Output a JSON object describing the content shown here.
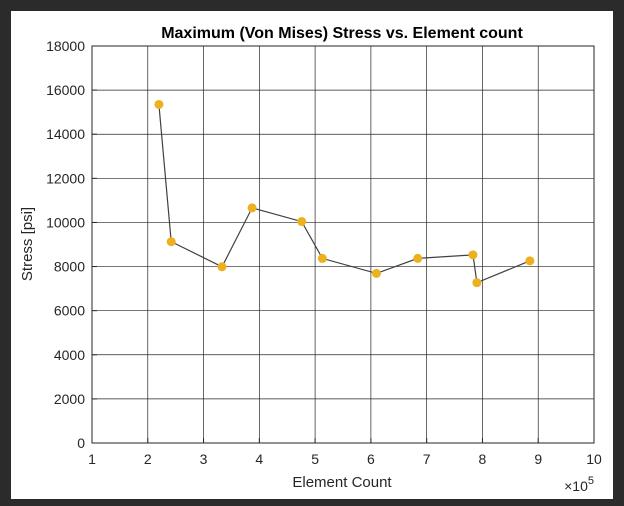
{
  "chart_data": {
    "type": "line",
    "title": "Maximum (Von Mises) Stress vs. Element count",
    "xlabel": "Element Count",
    "ylabel": "Stress [psi]",
    "x_exponent_label": "×10",
    "x_exponent_power": "5",
    "xlim": [
      1,
      10
    ],
    "ylim": [
      0,
      18000
    ],
    "x_ticks": [
      1,
      2,
      3,
      4,
      5,
      6,
      7,
      8,
      9,
      10
    ],
    "x_tick_labels": [
      "1",
      "2",
      "3",
      "4",
      "5",
      "6",
      "7",
      "8",
      "9",
      "10"
    ],
    "y_ticks": [
      0,
      2000,
      4000,
      6000,
      8000,
      10000,
      12000,
      14000,
      16000,
      18000
    ],
    "y_tick_labels": [
      "0",
      "2000",
      "4000",
      "6000",
      "8000",
      "10000",
      "12000",
      "14000",
      "16000",
      "18000"
    ],
    "grid": true,
    "line_color": "#404040",
    "marker_color": "#edb120",
    "series": [
      {
        "x": [
          2.2,
          2.42,
          3.33,
          3.87,
          4.76,
          5.13,
          6.1,
          6.84,
          7.83,
          7.9,
          8.85
        ],
        "values": [
          15350,
          9130,
          7990,
          10660,
          10040,
          8370,
          7690,
          8370,
          8530,
          7270,
          8260
        ]
      }
    ]
  }
}
